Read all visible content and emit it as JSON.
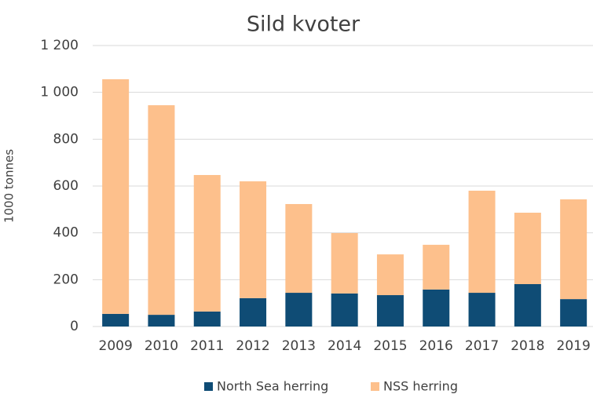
{
  "chart_data": {
    "type": "stacked_bar",
    "title": "Sild kvoter",
    "y_label": "1000 tonnes",
    "categories": [
      "2009",
      "2010",
      "2011",
      "2012",
      "2013",
      "2014",
      "2015",
      "2016",
      "2017",
      "2018",
      "2019"
    ],
    "series": [
      {
        "name": "North Sea herring",
        "color": "#0f4c75",
        "values": [
          54,
          50,
          64,
          121,
          144,
          141,
          134,
          158,
          144,
          181,
          117
        ]
      },
      {
        "name": "NSS herring",
        "color": "#fdc08c",
        "values": [
          1002,
          895,
          583,
          499,
          379,
          258,
          174,
          191,
          436,
          305,
          426
        ]
      }
    ],
    "ylim": [
      0,
      1200
    ],
    "yticks": [
      0,
      200,
      400,
      600,
      800,
      {
        "value": 1000,
        "label": "1 000"
      },
      {
        "value": 1200,
        "label": "1 200"
      }
    ],
    "grid": true,
    "legend": "bottom"
  }
}
